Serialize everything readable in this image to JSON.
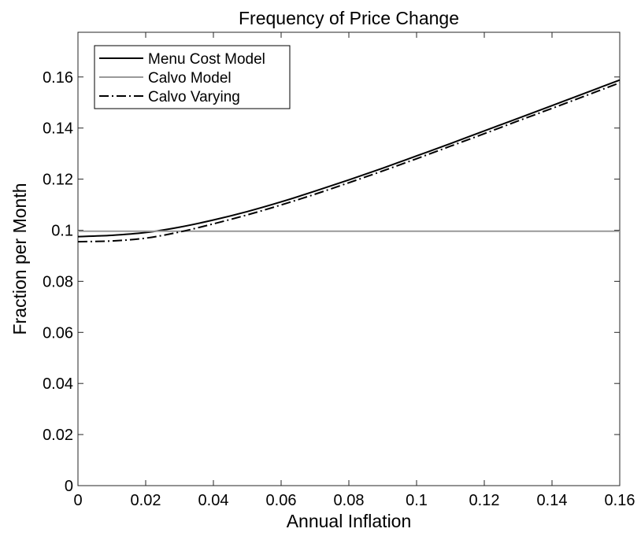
{
  "chart_data": {
    "type": "line",
    "title": "Frequency of Price Change",
    "xlabel": "Annual Inflation",
    "ylabel": "Fraction per Month",
    "xlim": [
      0,
      0.16
    ],
    "ylim": [
      0,
      0.1775
    ],
    "xticks": [
      "0",
      "0.02",
      "0.04",
      "0.06",
      "0.08",
      "0.1",
      "0.12",
      "0.14",
      "0.16"
    ],
    "xtick_values": [
      0,
      0.02,
      0.04,
      0.06,
      0.08,
      0.1,
      0.12,
      0.14,
      0.16
    ],
    "yticks": [
      "0",
      "0.02",
      "0.04",
      "0.06",
      "0.08",
      "0.1",
      "0.12",
      "0.14",
      "0.16"
    ],
    "ytick_values": [
      0,
      0.02,
      0.04,
      0.06,
      0.08,
      0.1,
      0.12,
      0.14,
      0.16
    ],
    "grid": false,
    "legend_position": "top-left",
    "x": [
      0,
      0.01,
      0.02,
      0.03,
      0.04,
      0.05,
      0.06,
      0.07,
      0.08,
      0.09,
      0.1,
      0.11,
      0.12,
      0.13,
      0.14,
      0.15,
      0.16
    ],
    "series": [
      {
        "name": "Menu Cost Model",
        "color": "#000000",
        "dash": "solid",
        "values": [
          0.0975,
          0.098,
          0.0991,
          0.1012,
          0.104,
          0.1073,
          0.1111,
          0.1153,
          0.1197,
          0.1243,
          0.1291,
          0.1339,
          0.1389,
          0.1438,
          0.1488,
          0.1538,
          0.1588
        ]
      },
      {
        "name": "Calvo Model",
        "color": "#999999",
        "dash": "solid",
        "values": [
          0.0996,
          0.0996,
          0.0996,
          0.0996,
          0.0996,
          0.0996,
          0.0996,
          0.0996,
          0.0996,
          0.0996,
          0.0996,
          0.0996,
          0.0996,
          0.0996,
          0.0996,
          0.0996,
          0.0996
        ]
      },
      {
        "name": "Calvo Varying",
        "color": "#000000",
        "dash": "dashdot",
        "values": [
          0.0955,
          0.0958,
          0.0969,
          0.0993,
          0.1025,
          0.106,
          0.1099,
          0.1141,
          0.1186,
          0.1232,
          0.128,
          0.1329,
          0.1378,
          0.1428,
          0.1477,
          0.1527,
          0.1577
        ]
      }
    ]
  }
}
